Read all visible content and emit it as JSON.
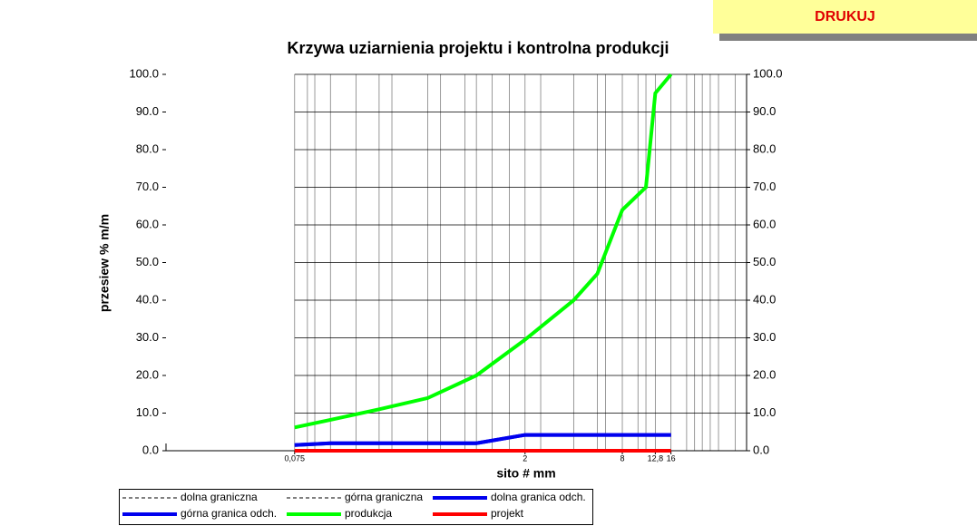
{
  "button": "DRUKUJ",
  "chart_data": {
    "type": "line",
    "title": "Krzywa uziarnienia projektu i kontrolna produkcji",
    "y_label": "przesiew % m/m",
    "x_label": "sito # mm",
    "x_log": true,
    "x": [
      0.075,
      0.125,
      0.25,
      0.5,
      1,
      2,
      4,
      5.6,
      8,
      11.2,
      12.8,
      16
    ],
    "xlim": [
      0.012,
      47
    ],
    "xticks": [
      {
        "value": 0.075,
        "label": "0,075"
      },
      2,
      8,
      {
        "value": 12.8,
        "label": "12,8"
      },
      16
    ],
    "xgrid": [
      0.075,
      0.09,
      0.1,
      0.125,
      0.18,
      0.25,
      0.3,
      0.5,
      0.6,
      0.85,
      1,
      1.25,
      1.6,
      2,
      2.5,
      4,
      5.6,
      6.3,
      8,
      10,
      11.2,
      12.8,
      16,
      20,
      22.4,
      25,
      28,
      31.5,
      40
    ],
    "ylim": [
      0,
      100
    ],
    "yticks": [
      {
        "value": 0,
        "label": "0.0"
      },
      {
        "value": 10,
        "label": "10.0"
      },
      {
        "value": 20,
        "label": "20.0"
      },
      {
        "value": 30,
        "label": "30.0"
      },
      {
        "value": 40,
        "label": "40.0"
      },
      {
        "value": 50,
        "label": "50.0"
      },
      {
        "value": 60,
        "label": "60.0"
      },
      {
        "value": 70,
        "label": "70.0"
      },
      {
        "value": 80,
        "label": "80.0"
      },
      {
        "value": 90,
        "label": "90.0"
      },
      {
        "value": 100,
        "label": "100.0"
      }
    ],
    "grid": true,
    "legend": "bottom",
    "series": [
      {
        "name": "dolna graniczna",
        "color": "#000000",
        "dashed": true,
        "values": [
          null,
          null,
          null,
          null,
          null,
          null,
          null,
          null,
          null,
          null,
          null,
          null
        ]
      },
      {
        "name": "górna graniczna",
        "color": "#000000",
        "dashed": true,
        "values": [
          null,
          null,
          null,
          null,
          null,
          null,
          null,
          null,
          null,
          null,
          null,
          null
        ]
      },
      {
        "name": "dolna granica odch.",
        "color": "#0000ee",
        "values": [
          1.5,
          2,
          2,
          2,
          2,
          4.2,
          4.2,
          4.2,
          4.2,
          4.2,
          4.2,
          4.2
        ]
      },
      {
        "name": "górna granica odch.",
        "color": "#0000ee",
        "values": [
          1.5,
          2,
          2,
          2,
          2,
          4.2,
          4.2,
          4.2,
          4.2,
          4.2,
          4.2,
          4.2
        ]
      },
      {
        "name": "produkcja",
        "color": "#00ff00",
        "values": [
          6.2,
          8.2,
          11,
          14,
          20,
          29.5,
          40,
          47,
          64,
          70,
          95,
          100
        ]
      },
      {
        "name": "projekt",
        "color": "#ff0000",
        "values": [
          0,
          0,
          0,
          0,
          0,
          0,
          0,
          0,
          0,
          0,
          0,
          0
        ]
      }
    ]
  }
}
